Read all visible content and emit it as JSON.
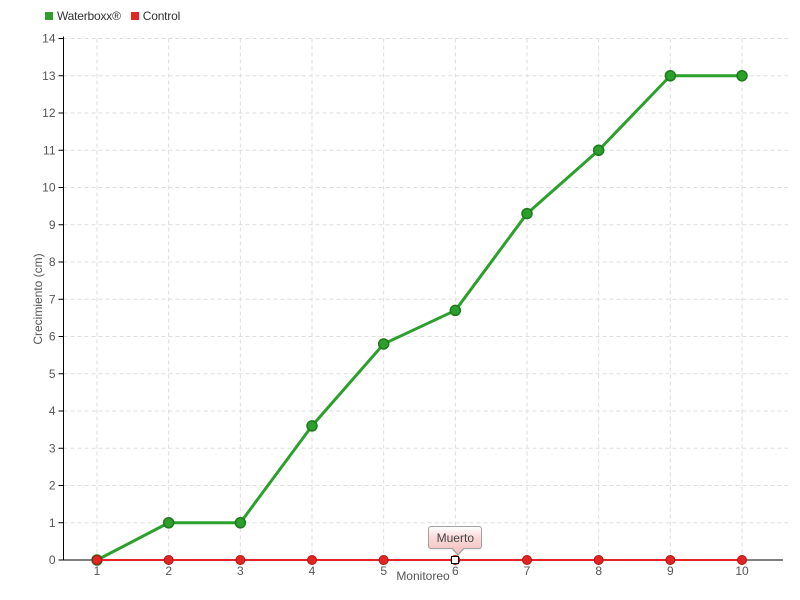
{
  "legend": {
    "items": [
      {
        "label": "Waterboxx®",
        "color": "#2ba02b"
      },
      {
        "label": "Control",
        "color": "#e22424"
      }
    ]
  },
  "axes": {
    "xlabel": "Monitoreo",
    "ylabel": "Crecimiento (cm)"
  },
  "annotation": {
    "text": "Muerto"
  },
  "colors": {
    "green": "#2ba02b",
    "green_dark": "#1d7a1d",
    "red": "#e22424",
    "red_dark": "#b51313",
    "grid": "#dddddd",
    "axis": "#000000",
    "tick_label": "#555555",
    "tooltip_border": "#a3a3a3",
    "tooltip_bg": "#f5c7c7",
    "tooltip_text": "#444444"
  },
  "chart_data": {
    "type": "line",
    "x": [
      1,
      2,
      3,
      4,
      5,
      6,
      7,
      8,
      9,
      10
    ],
    "series": [
      {
        "name": "Waterboxx®",
        "color": "#2ba02b",
        "values": [
          0,
          1,
          1,
          3.6,
          5.8,
          6.7,
          9.3,
          11,
          13,
          13
        ]
      },
      {
        "name": "Control",
        "color": "#e22424",
        "values": [
          0,
          0,
          0,
          0,
          0,
          0,
          0,
          0,
          0,
          0
        ]
      }
    ],
    "title": "",
    "xlabel": "Monitoreo",
    "ylabel": "Crecimiento (cm)",
    "xlim": [
      1,
      10
    ],
    "ylim": [
      0,
      14
    ],
    "y_tick_step": 1,
    "grid": true,
    "grid_style": "dashed",
    "legend_position": "top-left",
    "annotations": [
      {
        "text": "Muerto",
        "x": 6,
        "y": 0,
        "series": "Control"
      }
    ]
  }
}
